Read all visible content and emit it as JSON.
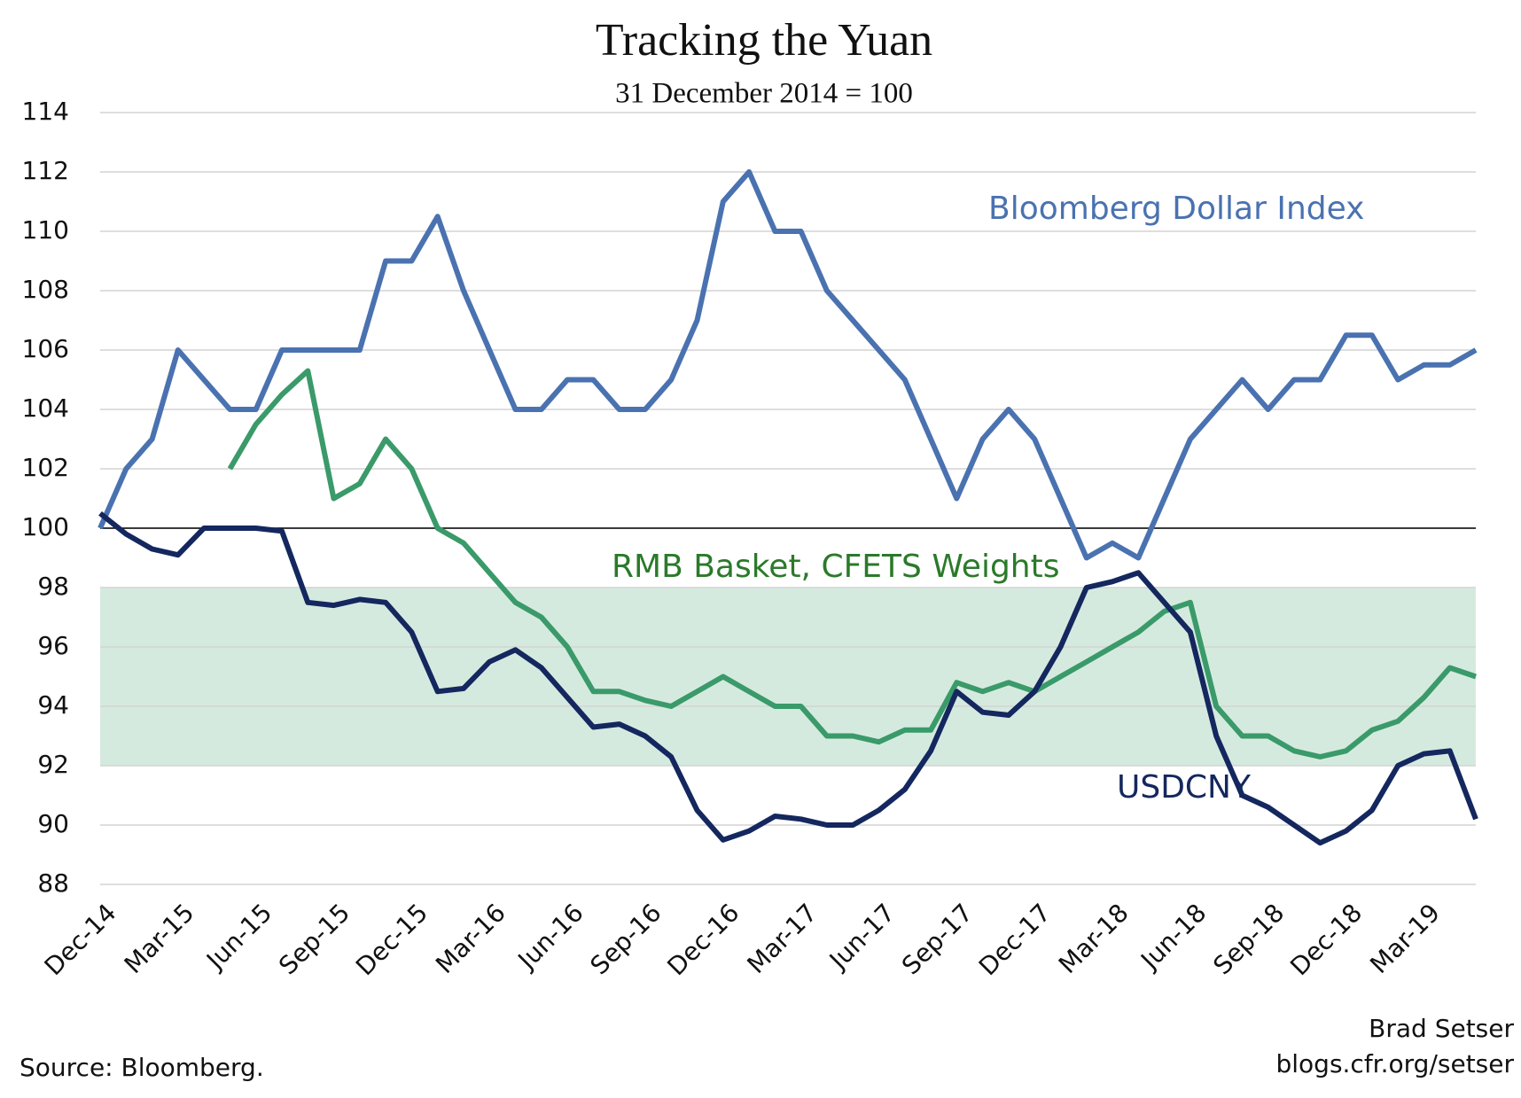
{
  "chart_data": {
    "type": "line",
    "title": "Tracking the Yuan",
    "subtitle": "31 December 2014 = 100",
    "source": "Source: Bloomberg.",
    "author": "Brad Setser",
    "website": "blogs.cfr.org/setser",
    "x": [
      "Dec-14",
      "Jan-15",
      "Feb-15",
      "Mar-15",
      "Apr-15",
      "May-15",
      "Jun-15",
      "Jul-15",
      "Aug-15",
      "Sep-15",
      "Oct-15",
      "Nov-15",
      "Dec-15",
      "Jan-16",
      "Feb-16",
      "Mar-16",
      "Apr-16",
      "May-16",
      "Jun-16",
      "Jul-16",
      "Aug-16",
      "Sep-16",
      "Oct-16",
      "Nov-16",
      "Dec-16",
      "Jan-17",
      "Feb-17",
      "Mar-17",
      "Apr-17",
      "May-17",
      "Jun-17",
      "Jul-17",
      "Aug-17",
      "Sep-17",
      "Oct-17",
      "Nov-17",
      "Dec-17",
      "Jan-18",
      "Feb-18",
      "Mar-18",
      "Apr-18",
      "May-18",
      "Jun-18",
      "Jul-18",
      "Aug-18",
      "Sep-18",
      "Oct-18",
      "Nov-18",
      "Dec-18",
      "Jan-19",
      "Feb-19",
      "Mar-19",
      "Apr-19",
      "May-19"
    ],
    "xticks": [
      "Dec-14",
      "Mar-15",
      "Jun-15",
      "Sep-15",
      "Dec-15",
      "Mar-16",
      "Jun-16",
      "Sep-16",
      "Dec-16",
      "Mar-17",
      "Jun-17",
      "Sep-17",
      "Dec-17",
      "Mar-18",
      "Jun-18",
      "Sep-18",
      "Dec-18",
      "Mar-19"
    ],
    "series": [
      {
        "name": "Bloomberg Dollar Index",
        "color": "#4a72b0",
        "values": [
          100,
          102,
          103,
          106,
          105,
          104,
          104,
          106,
          106,
          106,
          106,
          109,
          109,
          110.5,
          108,
          106,
          104,
          104,
          105,
          105,
          104,
          104,
          105,
          107,
          111,
          112,
          110,
          110,
          108,
          107,
          106,
          105,
          103,
          101,
          103,
          104,
          103,
          101,
          99,
          99.5,
          99,
          101,
          103,
          104,
          105,
          104,
          105,
          105,
          106.5,
          106.5,
          105,
          105.5,
          105.5,
          106
        ]
      },
      {
        "name": "RMB Basket, CFETS Weights",
        "color": "#3a9a6a",
        "label_color": "#2a7a2a",
        "values": [
          null,
          null,
          null,
          null,
          null,
          102,
          103.5,
          104.5,
          105.3,
          101,
          101.5,
          103,
          102,
          100,
          99.5,
          98.5,
          97.5,
          97,
          96,
          94.5,
          94.5,
          94.2,
          94,
          94.5,
          95,
          94.5,
          94,
          94,
          93,
          93,
          92.8,
          93.2,
          93.2,
          94.8,
          94.5,
          94.8,
          94.5,
          95,
          95.5,
          96,
          96.5,
          97.2,
          97.5,
          94,
          93,
          93,
          92.5,
          92.3,
          92.5,
          93.2,
          93.5,
          94.3,
          95.3,
          95
        ]
      },
      {
        "name": "USDCNY",
        "color": "#14275e",
        "values": [
          100.5,
          99.8,
          99.3,
          99.1,
          100,
          100,
          100,
          99.9,
          97.5,
          97.4,
          97.6,
          97.5,
          96.5,
          94.5,
          94.6,
          95.5,
          95.9,
          95.3,
          94.3,
          93.3,
          93.4,
          93,
          92.3,
          90.5,
          89.5,
          89.8,
          90.3,
          90.2,
          90,
          90,
          90.5,
          91.2,
          92.5,
          94.5,
          93.8,
          93.7,
          94.5,
          96,
          98,
          98.2,
          98.5,
          97.5,
          96.5,
          93,
          91,
          90.6,
          90,
          89.4,
          89.8,
          90.5,
          92,
          92.4,
          92.5,
          90.2
        ]
      }
    ],
    "ylim": [
      88,
      114
    ],
    "yticks": [
      88,
      90,
      92,
      94,
      96,
      98,
      100,
      102,
      104,
      106,
      108,
      110,
      112,
      114
    ],
    "grid": true,
    "shaded_range": [
      92,
      98
    ],
    "shaded_color": "#d5eadf",
    "reference_line": 100
  }
}
